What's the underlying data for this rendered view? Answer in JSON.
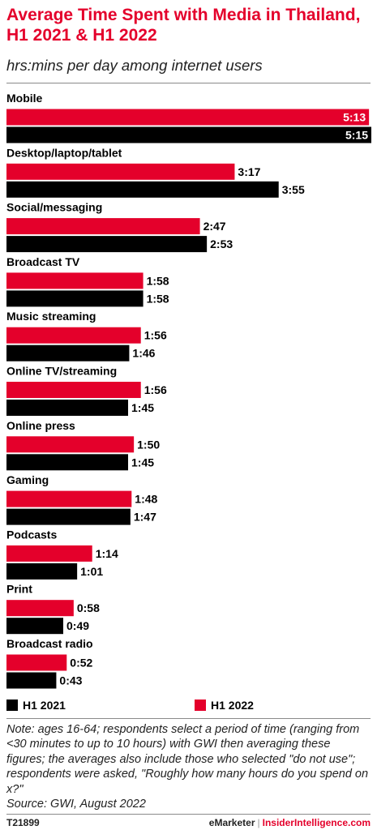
{
  "chart_data": {
    "type": "bar",
    "orientation": "horizontal",
    "title": "Average Time Spent with Media in Thailand, H1 2021 & H1 2022",
    "subtitle": "hrs:mins per day among internet users",
    "categories": [
      "Mobile",
      "Desktop/laptop/tablet",
      "Social/messaging",
      "Broadcast TV",
      "Music streaming",
      "Online TV/streaming",
      "Online press",
      "Gaming",
      "Podcasts",
      "Print",
      "Broadcast radio"
    ],
    "series": [
      {
        "name": "H1 2022",
        "color": "#e4002b",
        "values": [
          "5:13",
          "3:17",
          "2:47",
          "1:58",
          "1:56",
          "1:56",
          "1:50",
          "1:48",
          "1:14",
          "0:58",
          "0:52"
        ]
      },
      {
        "name": "H1 2021",
        "color": "#000000",
        "values": [
          "5:15",
          "3:55",
          "2:53",
          "1:58",
          "1:46",
          "1:45",
          "1:45",
          "1:47",
          "1:01",
          "0:49",
          "0:43"
        ]
      }
    ],
    "legend": "bottom",
    "grid": false
  },
  "legend": {
    "items": [
      "H1 2021",
      "H1 2022"
    ]
  },
  "note": "Note: ages 16-64; respondents select a period of time (ranging from <30 minutes to up to 10 hours) with GWI then averaging these figures; the averages also include those who selected \"do not use\"; respondents were asked, \"Roughly how many hours do you spend on x?\"",
  "source": "Source:  GWI, August 2022",
  "footer": {
    "id": "T21899",
    "brand_left": "eMarketer",
    "separator": "|",
    "brand_right": "InsiderIntelligence.com"
  }
}
